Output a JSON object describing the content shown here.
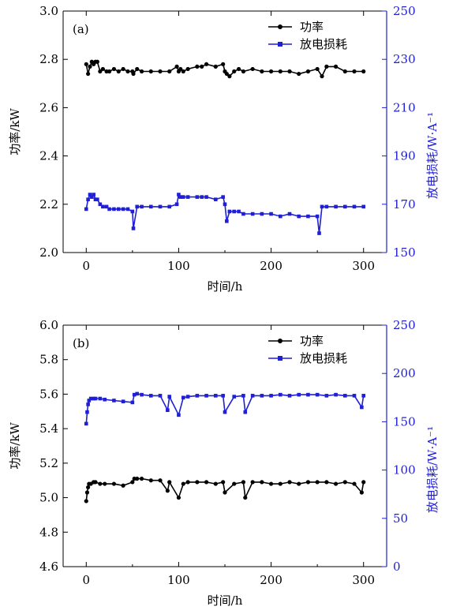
{
  "colors": {
    "left_axis": "#000000",
    "right_axis": "#1f1fd6",
    "series_power": "#000000",
    "series_loss": "#1f1fd6"
  },
  "chart_data": [
    {
      "type": "line",
      "panel_label": "(a)",
      "xlabel": "时间/h",
      "ylabel_left": "功率/kW",
      "ylabel_right": "放电损耗/W·A⁻¹",
      "xlim": [
        -25,
        325
      ],
      "ylim_left": [
        2.0,
        3.0
      ],
      "ylim_right": [
        150,
        250
      ],
      "xticks": [
        0,
        100,
        200,
        300
      ],
      "xtick_labels": [
        "0",
        "100",
        "200",
        "300"
      ],
      "yticks_left": [
        2.0,
        2.2,
        2.4,
        2.6,
        2.8,
        3.0
      ],
      "ytick_labels_left": [
        "2.0",
        "2.2",
        "2.4",
        "2.6",
        "2.8",
        "3.0"
      ],
      "yticks_right": [
        150,
        170,
        190,
        210,
        230,
        250
      ],
      "ytick_labels_right": [
        "150",
        "170",
        "190",
        "210",
        "230",
        "250"
      ],
      "legend": {
        "placement": "top-right",
        "entries": [
          "功率",
          "放电损耗"
        ]
      },
      "series": [
        {
          "name": "功率",
          "axis": "left",
          "color": "#000000",
          "marker": "circle",
          "x": [
            0,
            2,
            4,
            6,
            8,
            10,
            12,
            15,
            18,
            22,
            25,
            30,
            35,
            40,
            45,
            50,
            51,
            55,
            60,
            70,
            80,
            90,
            98,
            100,
            102,
            105,
            110,
            120,
            125,
            130,
            140,
            148,
            150,
            152,
            155,
            160,
            165,
            170,
            180,
            190,
            200,
            210,
            220,
            230,
            240,
            250,
            255,
            260,
            270,
            280,
            290,
            300
          ],
          "y": [
            2.78,
            2.74,
            2.77,
            2.79,
            2.78,
            2.79,
            2.79,
            2.75,
            2.76,
            2.75,
            2.75,
            2.76,
            2.75,
            2.76,
            2.75,
            2.75,
            2.74,
            2.76,
            2.75,
            2.75,
            2.75,
            2.75,
            2.77,
            2.75,
            2.76,
            2.75,
            2.76,
            2.77,
            2.77,
            2.78,
            2.77,
            2.78,
            2.75,
            2.74,
            2.73,
            2.75,
            2.76,
            2.75,
            2.76,
            2.75,
            2.75,
            2.75,
            2.75,
            2.74,
            2.75,
            2.76,
            2.73,
            2.77,
            2.77,
            2.75,
            2.75,
            2.75
          ]
        },
        {
          "name": "放电损耗",
          "axis": "right",
          "color": "#1f1fd6",
          "marker": "square",
          "x": [
            0,
            2,
            4,
            6,
            8,
            10,
            12,
            15,
            18,
            22,
            25,
            30,
            35,
            40,
            45,
            50,
            51,
            55,
            60,
            70,
            80,
            90,
            98,
            100,
            102,
            105,
            110,
            120,
            125,
            130,
            140,
            148,
            150,
            152,
            155,
            160,
            165,
            170,
            180,
            190,
            200,
            210,
            220,
            230,
            240,
            250,
            252,
            255,
            260,
            270,
            280,
            290,
            300
          ],
          "y": [
            168,
            172,
            174,
            173,
            174,
            172,
            172,
            170,
            169,
            169,
            168,
            168,
            168,
            168,
            168,
            167,
            160,
            169,
            169,
            169,
            169,
            169,
            170,
            174,
            173,
            173,
            173,
            173,
            173,
            173,
            172,
            173,
            170,
            163,
            167,
            167,
            167,
            166,
            166,
            166,
            166,
            165,
            166,
            165,
            165,
            165,
            158,
            169,
            169,
            169,
            169,
            169,
            169
          ]
        }
      ]
    },
    {
      "type": "line",
      "panel_label": "(b)",
      "xlabel": "时间/h",
      "ylabel_left": "功率/kW",
      "ylabel_right": "放电损耗/W·A⁻¹",
      "xlim": [
        -25,
        325
      ],
      "ylim_left": [
        4.6,
        6.0
      ],
      "ylim_right": [
        0,
        250
      ],
      "xticks": [
        0,
        100,
        200,
        300
      ],
      "xtick_labels": [
        "0",
        "100",
        "200",
        "300"
      ],
      "yticks_left": [
        4.6,
        4.8,
        5.0,
        5.2,
        5.4,
        5.6,
        5.8,
        6.0
      ],
      "ytick_labels_left": [
        "4.6",
        "4.8",
        "5.0",
        "5.2",
        "5.4",
        "5.6",
        "5.8",
        "6.0"
      ],
      "yticks_right": [
        0,
        50,
        100,
        150,
        200,
        250
      ],
      "ytick_labels_right": [
        "0",
        "50",
        "100",
        "150",
        "200",
        "250"
      ],
      "legend": {
        "placement": "top-right",
        "entries": [
          "功率",
          "放电损耗"
        ]
      },
      "series": [
        {
          "name": "功率",
          "axis": "left",
          "color": "#000000",
          "marker": "circle",
          "x": [
            0,
            1,
            2,
            3,
            5,
            8,
            10,
            15,
            20,
            30,
            40,
            50,
            52,
            55,
            60,
            70,
            80,
            88,
            90,
            100,
            105,
            110,
            120,
            130,
            140,
            148,
            150,
            160,
            170,
            172,
            180,
            190,
            200,
            210,
            220,
            230,
            240,
            250,
            260,
            270,
            280,
            290,
            298,
            300
          ],
          "y": [
            4.98,
            5.03,
            5.06,
            5.08,
            5.08,
            5.09,
            5.09,
            5.08,
            5.08,
            5.08,
            5.07,
            5.09,
            5.11,
            5.11,
            5.11,
            5.1,
            5.1,
            5.04,
            5.09,
            5.0,
            5.08,
            5.09,
            5.09,
            5.09,
            5.08,
            5.09,
            5.03,
            5.08,
            5.09,
            5.0,
            5.09,
            5.09,
            5.08,
            5.08,
            5.09,
            5.08,
            5.09,
            5.09,
            5.09,
            5.08,
            5.09,
            5.08,
            5.03,
            5.09
          ]
        },
        {
          "name": "放电损耗",
          "axis": "right",
          "color": "#1f1fd6",
          "marker": "square",
          "x": [
            0,
            1,
            2,
            3,
            5,
            8,
            10,
            15,
            20,
            30,
            40,
            50,
            52,
            55,
            60,
            70,
            80,
            88,
            90,
            100,
            105,
            110,
            120,
            130,
            140,
            148,
            150,
            160,
            170,
            172,
            180,
            190,
            200,
            210,
            220,
            230,
            240,
            250,
            260,
            270,
            280,
            290,
            298,
            300
          ],
          "y": [
            148,
            160,
            168,
            172,
            174,
            174,
            174,
            174,
            173,
            172,
            171,
            170,
            178,
            179,
            178,
            177,
            177,
            162,
            176,
            157,
            175,
            176,
            177,
            177,
            177,
            177,
            160,
            176,
            177,
            160,
            177,
            177,
            177,
            178,
            177,
            178,
            178,
            178,
            177,
            178,
            177,
            177,
            165,
            177
          ]
        }
      ]
    }
  ]
}
